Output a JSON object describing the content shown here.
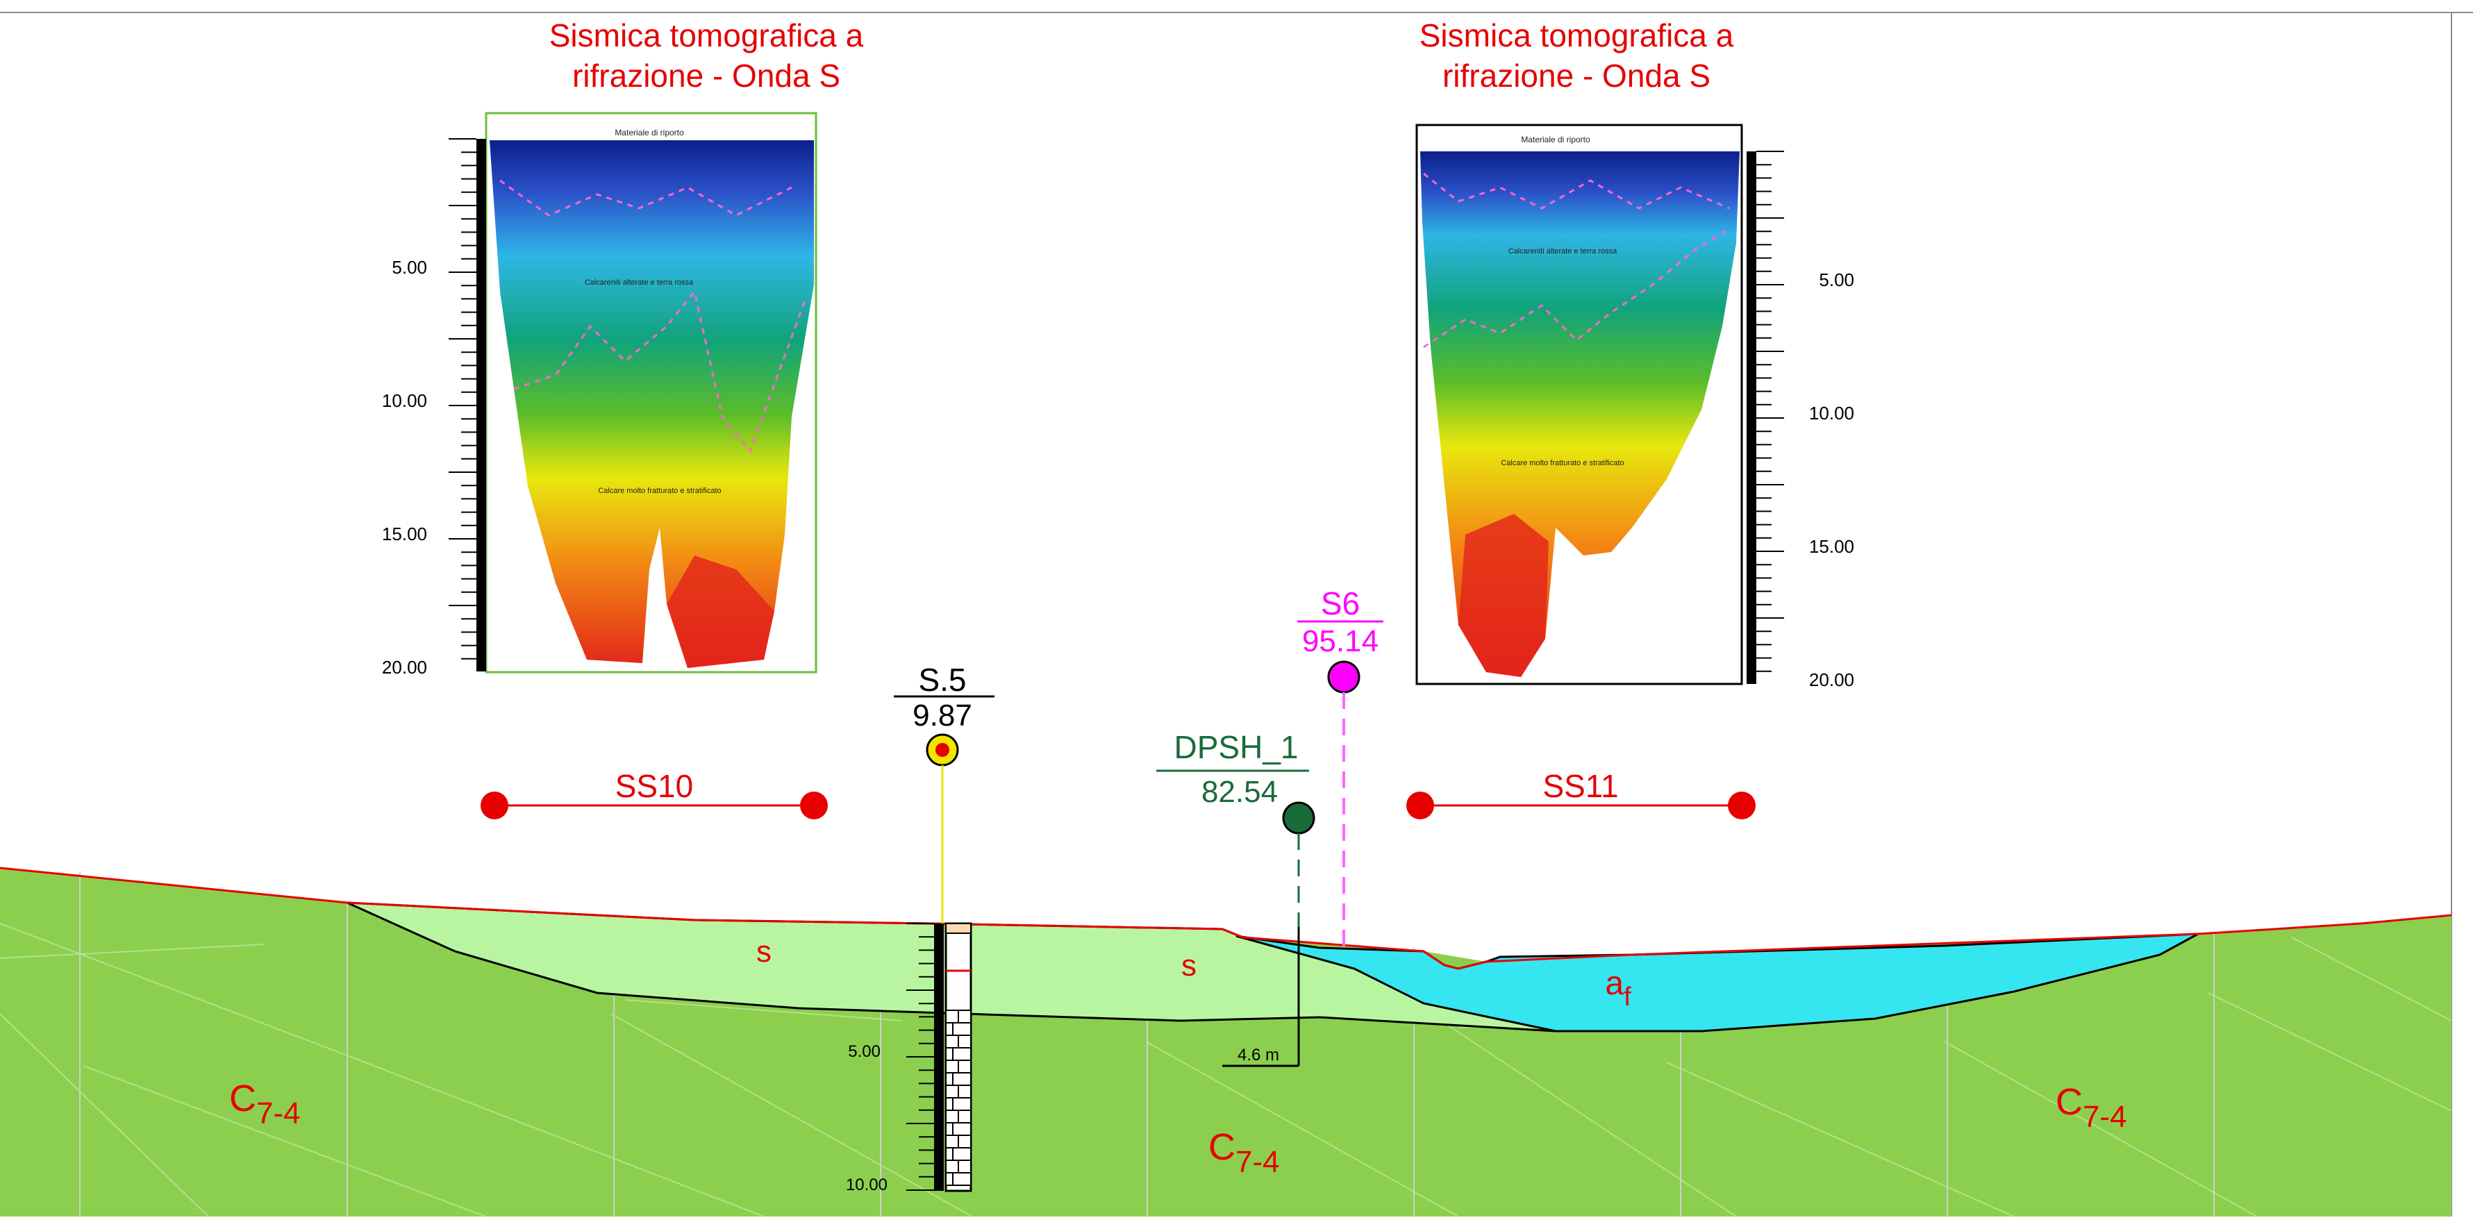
{
  "panels": {
    "left": {
      "title_line1": "Sismica tomografica a",
      "title_line2": "rifrazione - Onda S",
      "scale_labels": [
        "5.00",
        "10.00",
        "15.00",
        "20.00"
      ],
      "inner_label_top": "Materiale di riporto",
      "inner_label_mid": "Calcareniti alterate e terra rossa",
      "inner_label_low": "Calcare molto fratturato e stratificato",
      "frame_color": "#6cbf3a"
    },
    "right": {
      "title_line1": "Sismica tomografica a",
      "title_line2": "rifrazione - Onda S",
      "scale_labels": [
        "5.00",
        "10.00",
        "15.00",
        "20.00"
      ],
      "inner_label_top": "Materiale di riporto",
      "inner_label_mid": "Calcareniti alterate e terra rossa",
      "inner_label_low": "Calcare molto fratturato e stratificato",
      "frame_color": "#000000"
    }
  },
  "points": {
    "s5": {
      "name": "S.5",
      "value": "9.87"
    },
    "s6": {
      "name": "S6",
      "value": "95.14",
      "color": "#ff00ff"
    },
    "dpsh": {
      "name": "DPSH_1",
      "value": "82.54",
      "color": "#1a6b3a",
      "depth": "4.6 m"
    }
  },
  "lines": {
    "ss10": {
      "label": "SS10",
      "color": "#e60000"
    },
    "ss11": {
      "label": "SS11",
      "color": "#e60000"
    }
  },
  "units": {
    "s_left": "s",
    "s_right": "s",
    "af_base": "a",
    "af_sub": "f",
    "c_base": "C",
    "c_sub": "7-4"
  },
  "borehole": {
    "scale_labels": [
      "5.00",
      "10.00"
    ]
  },
  "colors": {
    "bedrock": "#8ccf4e",
    "soil": "#b9f5a0",
    "alluvium": "#35e6f0",
    "label_red": "#e60000"
  }
}
